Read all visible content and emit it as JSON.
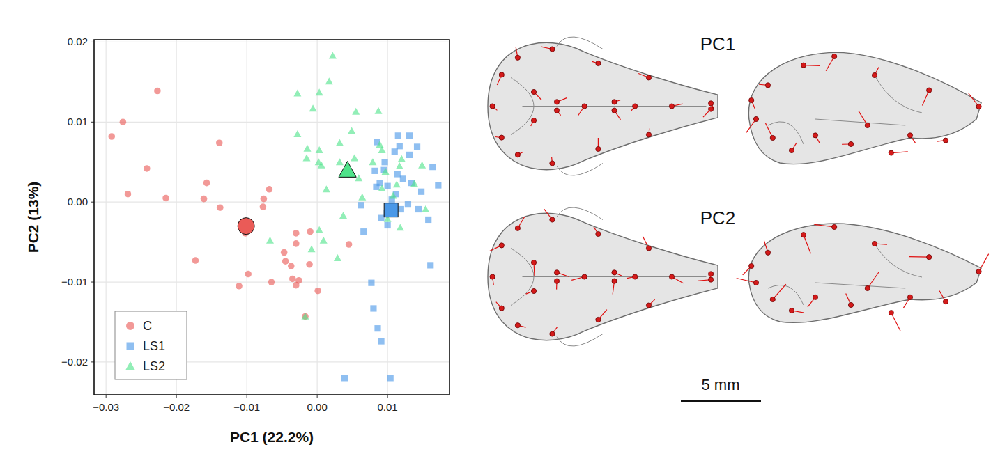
{
  "chart_data": {
    "type": "scatter",
    "x_label": "PC1 (22.2%)",
    "y_label": "PC2 (13%)",
    "xlim": [
      -0.0317,
      0.0188
    ],
    "ylim": [
      -0.0241,
      0.0203
    ],
    "xticks": [
      {
        "value": -0.03,
        "label": "−0.03"
      },
      {
        "value": -0.02,
        "label": "−0.02"
      },
      {
        "value": -0.01,
        "label": "−0.01"
      },
      {
        "value": 0,
        "label": "0.00"
      },
      0.01
    ],
    "yticks": [
      {
        "value": -0.02,
        "label": "−0.02"
      },
      {
        "value": -0.01,
        "label": "−0.01"
      },
      {
        "value": 0,
        "label": "0.00"
      },
      0.01,
      0.02
    ],
    "grid": true,
    "legend": "bottom-left",
    "annotations": [
      "PC1",
      "PC2",
      "5 mm"
    ],
    "series": [
      {
        "name": "C",
        "color": "#ea5b57",
        "marker": "circle",
        "x": [
          -0.0292,
          -0.0276,
          -0.0227,
          -0.0242,
          -0.0269,
          -0.0215,
          -0.0139,
          -0.0157,
          -0.0161,
          -0.0138,
          -0.0173,
          -0.0111,
          -0.0098,
          -0.0068,
          -0.0076,
          -0.0077,
          -0.0102,
          -0.0065,
          -0.003,
          -0.003,
          -0.0047,
          -0.0045,
          -0.0037,
          -0.0035,
          -0.003,
          -0.0011,
          0.0001,
          0.0045,
          -0.0017,
          -0.0026,
          -0.001
        ],
        "values": [
          0.0082,
          0.01,
          0.0139,
          0.0042,
          0.001,
          0.0005,
          0.0074,
          0.0024,
          0.0004,
          -0.0007,
          -0.0073,
          -0.0105,
          -0.009,
          0.0016,
          0.0004,
          -0.0006,
          -0.0039,
          -0.01,
          -0.0039,
          -0.0052,
          -0.0063,
          -0.0074,
          -0.008,
          -0.0096,
          -0.0104,
          -0.0078,
          -0.0111,
          -0.0053,
          -0.0143,
          -0.0098,
          -0.0037
        ],
        "mean": [
          -0.0101,
          -0.003
        ]
      },
      {
        "name": "LS1",
        "color": "#4a98e8",
        "marker": "square",
        "x": [
          0.0115,
          0.0131,
          0.0142,
          0.0085,
          0.0117,
          0.011,
          0.0131,
          0.0096,
          0.0082,
          0.0095,
          0.0114,
          0.0122,
          0.0164,
          0.0172,
          0.0089,
          0.01,
          0.0134,
          0.0148,
          0.0062,
          0.0099,
          0.0119,
          0.0144,
          0.0158,
          0.01,
          0.0091,
          0.0129,
          0.0066,
          0.0161,
          0.0077,
          0.008,
          0.0086,
          0.0091,
          0.0039,
          0.0104,
          0.0106,
          0.0084,
          0.0112
        ],
        "values": [
          0.0083,
          0.0083,
          0.0069,
          0.0075,
          0.007,
          0.0063,
          0.0059,
          0.005,
          0.0039,
          0.004,
          0.0035,
          0.0029,
          0.0044,
          0.0021,
          0.0024,
          0.002,
          0.0024,
          0.0013,
          -0.0004,
          -0.0014,
          -0.0009,
          -0.0009,
          -0.0022,
          -0.0029,
          -0.002,
          -0.0003,
          -0.0037,
          -0.0079,
          -0.0101,
          -0.0133,
          -0.0158,
          -0.0174,
          -0.022,
          -0.022,
          0.0003,
          0.0019,
          0.001
        ],
        "mean": [
          0.0105,
          -0.001
        ]
      },
      {
        "name": "LS2",
        "color": "#4fe38a",
        "marker": "triangle",
        "x": [
          0.0022,
          -0.0028,
          0.0003,
          0.0017,
          -0.0006,
          0.0055,
          0.0087,
          -0.0028,
          0.0032,
          0.0049,
          -0.0014,
          0.0003,
          0.0002,
          -0.0015,
          0.0006,
          0.0032,
          0.0053,
          0.0092,
          0.0079,
          0.0089,
          0.0048,
          0.0059,
          0.0013,
          0.0064,
          0.0108,
          0.0113,
          0.0138,
          0.0149,
          0.0154,
          0.0118,
          0.01,
          0.0037,
          0.0009,
          0.0003,
          -0.0008,
          -0.0067,
          0.0029,
          -0.0017,
          0.0092,
          0.0097,
          0.0117,
          0.012
        ],
        "values": [
          0.0183,
          0.0136,
          0.0137,
          0.0151,
          0.0117,
          0.0113,
          0.0114,
          0.0085,
          0.0074,
          0.0089,
          0.0067,
          0.0065,
          0.005,
          0.0055,
          0.0046,
          0.005,
          0.0055,
          0.0065,
          0.005,
          0.0072,
          0.0035,
          0.003,
          0.0016,
          0.0006,
          0.0008,
          0.0022,
          0.0023,
          0.0046,
          -0.0009,
          -0.0032,
          -0.0021,
          -0.0017,
          -0.0048,
          -0.0035,
          -0.0059,
          -0.0048,
          -0.007,
          -0.0143,
          0.0017,
          0.0038,
          0.0045,
          0.0054
        ],
        "mean": [
          0.0043,
          0.004
        ]
      }
    ]
  }
}
